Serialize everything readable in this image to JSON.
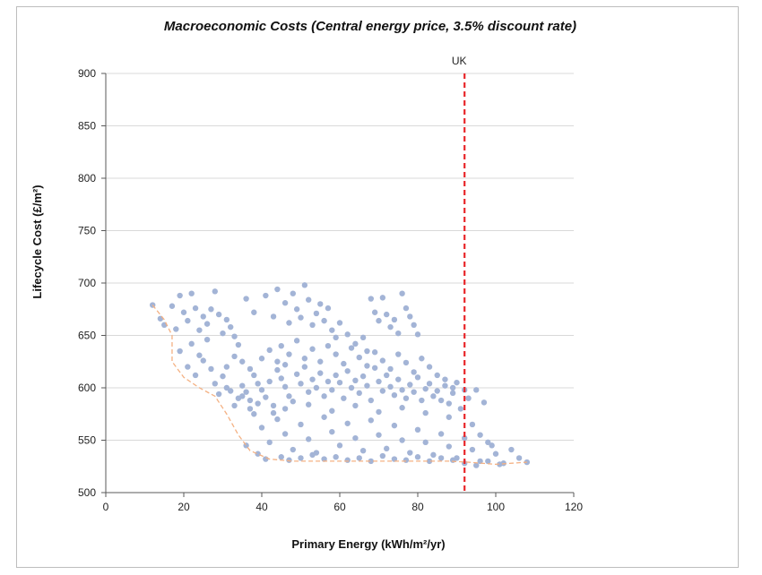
{
  "chart_data": {
    "type": "scatter",
    "title": "Macroeconomic Costs (Central energy price, 3.5% discount rate)",
    "xlabel": "Primary Energy (kWh/m²/yr)",
    "ylabel": "Lifecycle Cost (£/m²)",
    "xlim": [
      0,
      120
    ],
    "ylim": [
      500,
      900
    ],
    "x_ticks": [
      "0",
      "20",
      "40",
      "60",
      "80",
      "100",
      "120"
    ],
    "y_ticks": [
      "500",
      "550",
      "600",
      "650",
      "700",
      "750",
      "800",
      "850",
      "900"
    ],
    "grid": "horizontal",
    "colors": {
      "points": "#a3b4d6",
      "front": "#f4b183",
      "reference": "#e8262a",
      "grid": "#d9d9d9"
    },
    "reference_line": {
      "label": "UK",
      "x": 92
    },
    "pareto_front": [
      [
        12,
        679
      ],
      [
        15,
        665
      ],
      [
        17,
        650
      ],
      [
        17,
        625
      ],
      [
        20,
        610
      ],
      [
        24,
        600
      ],
      [
        28,
        592
      ],
      [
        31,
        575
      ],
      [
        34,
        555
      ],
      [
        37,
        540
      ],
      [
        42,
        532
      ],
      [
        48,
        530
      ],
      [
        60,
        530
      ],
      [
        75,
        530
      ],
      [
        88,
        530
      ],
      [
        93,
        529
      ],
      [
        100,
        527
      ],
      [
        108,
        529
      ]
    ],
    "series": [
      {
        "points": [
          [
            12,
            679
          ],
          [
            14,
            666
          ],
          [
            15,
            660
          ],
          [
            17,
            678
          ],
          [
            18,
            656
          ],
          [
            19,
            688
          ],
          [
            20,
            672
          ],
          [
            21,
            664
          ],
          [
            22,
            690
          ],
          [
            23,
            676
          ],
          [
            24,
            655
          ],
          [
            25,
            668
          ],
          [
            26,
            661
          ],
          [
            27,
            675
          ],
          [
            28,
            692
          ],
          [
            29,
            670
          ],
          [
            30,
            652
          ],
          [
            31,
            665
          ],
          [
            32,
            658
          ],
          [
            33,
            649
          ],
          [
            34,
            641
          ],
          [
            22,
            642
          ],
          [
            24,
            631
          ],
          [
            26,
            646
          ],
          [
            19,
            635
          ],
          [
            21,
            620
          ],
          [
            23,
            612
          ],
          [
            25,
            626
          ],
          [
            27,
            618
          ],
          [
            28,
            604
          ],
          [
            29,
            594
          ],
          [
            30,
            611
          ],
          [
            31,
            600
          ],
          [
            32,
            597
          ],
          [
            33,
            583
          ],
          [
            34,
            590
          ],
          [
            35,
            602
          ],
          [
            36,
            596
          ],
          [
            37,
            588
          ],
          [
            38,
            612
          ],
          [
            39,
            604
          ],
          [
            40,
            598
          ],
          [
            41,
            591
          ],
          [
            42,
            606
          ],
          [
            43,
            583
          ],
          [
            44,
            617
          ],
          [
            45,
            609
          ],
          [
            46,
            601
          ],
          [
            47,
            592
          ],
          [
            48,
            587
          ],
          [
            49,
            613
          ],
          [
            50,
            604
          ],
          [
            51,
            620
          ],
          [
            52,
            596
          ],
          [
            53,
            608
          ],
          [
            54,
            600
          ],
          [
            55,
            614
          ],
          [
            56,
            592
          ],
          [
            57,
            606
          ],
          [
            58,
            598
          ],
          [
            59,
            612
          ],
          [
            60,
            605
          ],
          [
            61,
            590
          ],
          [
            62,
            616
          ],
          [
            63,
            600
          ],
          [
            64,
            607
          ],
          [
            65,
            595
          ],
          [
            66,
            611
          ],
          [
            67,
            602
          ],
          [
            68,
            588
          ],
          [
            69,
            619
          ],
          [
            70,
            606
          ],
          [
            71,
            597
          ],
          [
            72,
            612
          ],
          [
            73,
            601
          ],
          [
            74,
            593
          ],
          [
            75,
            608
          ],
          [
            76,
            598
          ],
          [
            77,
            590
          ],
          [
            78,
            603
          ],
          [
            79,
            596
          ],
          [
            80,
            610
          ],
          [
            81,
            588
          ],
          [
            82,
            599
          ],
          [
            83,
            604
          ],
          [
            84,
            592
          ],
          [
            85,
            597
          ],
          [
            86,
            588
          ],
          [
            87,
            602
          ],
          [
            88,
            585
          ],
          [
            89,
            595
          ],
          [
            90,
            605
          ],
          [
            91,
            580
          ],
          [
            92,
            598
          ],
          [
            93,
            590
          ],
          [
            95,
            598
          ],
          [
            97,
            586
          ],
          [
            36,
            685
          ],
          [
            38,
            672
          ],
          [
            41,
            688
          ],
          [
            43,
            668
          ],
          [
            44,
            694
          ],
          [
            46,
            681
          ],
          [
            47,
            662
          ],
          [
            48,
            690
          ],
          [
            49,
            675
          ],
          [
            50,
            667
          ],
          [
            51,
            698
          ],
          [
            52,
            684
          ],
          [
            53,
            660
          ],
          [
            54,
            671
          ],
          [
            55,
            680
          ],
          [
            56,
            664
          ],
          [
            57,
            676
          ],
          [
            58,
            655
          ],
          [
            59,
            648
          ],
          [
            60,
            662
          ],
          [
            62,
            651
          ],
          [
            64,
            642
          ],
          [
            66,
            648
          ],
          [
            67,
            635
          ],
          [
            68,
            685
          ],
          [
            69,
            672
          ],
          [
            70,
            664
          ],
          [
            71,
            686
          ],
          [
            72,
            670
          ],
          [
            73,
            658
          ],
          [
            74,
            665
          ],
          [
            75,
            652
          ],
          [
            76,
            690
          ],
          [
            77,
            676
          ],
          [
            78,
            668
          ],
          [
            79,
            660
          ],
          [
            80,
            651
          ],
          [
            45,
            640
          ],
          [
            47,
            632
          ],
          [
            49,
            645
          ],
          [
            51,
            628
          ],
          [
            53,
            637
          ],
          [
            55,
            625
          ],
          [
            57,
            640
          ],
          [
            59,
            632
          ],
          [
            61,
            623
          ],
          [
            63,
            638
          ],
          [
            65,
            629
          ],
          [
            67,
            621
          ],
          [
            69,
            634
          ],
          [
            71,
            626
          ],
          [
            73,
            618
          ],
          [
            75,
            632
          ],
          [
            77,
            624
          ],
          [
            79,
            615
          ],
          [
            81,
            628
          ],
          [
            83,
            620
          ],
          [
            85,
            612
          ],
          [
            87,
            608
          ],
          [
            89,
            600
          ],
          [
            38,
            575
          ],
          [
            40,
            562
          ],
          [
            42,
            548
          ],
          [
            44,
            570
          ],
          [
            46,
            556
          ],
          [
            48,
            541
          ],
          [
            50,
            565
          ],
          [
            52,
            551
          ],
          [
            54,
            538
          ],
          [
            56,
            572
          ],
          [
            58,
            558
          ],
          [
            60,
            545
          ],
          [
            62,
            566
          ],
          [
            64,
            552
          ],
          [
            66,
            540
          ],
          [
            68,
            569
          ],
          [
            70,
            555
          ],
          [
            72,
            542
          ],
          [
            74,
            564
          ],
          [
            76,
            550
          ],
          [
            78,
            538
          ],
          [
            80,
            560
          ],
          [
            82,
            548
          ],
          [
            84,
            536
          ],
          [
            86,
            556
          ],
          [
            88,
            544
          ],
          [
            90,
            533
          ],
          [
            92,
            552
          ],
          [
            94,
            541
          ],
          [
            96,
            530
          ],
          [
            98,
            548
          ],
          [
            100,
            537
          ],
          [
            102,
            528
          ],
          [
            104,
            541
          ],
          [
            106,
            533
          ],
          [
            108,
            529
          ],
          [
            36,
            545
          ],
          [
            39,
            537
          ],
          [
            41,
            532
          ],
          [
            45,
            534
          ],
          [
            47,
            531
          ],
          [
            50,
            533
          ],
          [
            53,
            536
          ],
          [
            56,
            532
          ],
          [
            59,
            534
          ],
          [
            62,
            531
          ],
          [
            65,
            533
          ],
          [
            68,
            530
          ],
          [
            71,
            535
          ],
          [
            74,
            532
          ],
          [
            77,
            531
          ],
          [
            80,
            534
          ],
          [
            83,
            530
          ],
          [
            86,
            533
          ],
          [
            89,
            531
          ],
          [
            92,
            528
          ],
          [
            95,
            526
          ],
          [
            98,
            530
          ],
          [
            101,
            527
          ],
          [
            35,
            592
          ],
          [
            37,
            580
          ],
          [
            39,
            585
          ],
          [
            43,
            576
          ],
          [
            46,
            580
          ],
          [
            52,
            584
          ],
          [
            58,
            578
          ],
          [
            64,
            583
          ],
          [
            70,
            577
          ],
          [
            76,
            581
          ],
          [
            82,
            576
          ],
          [
            88,
            572
          ],
          [
            94,
            565
          ],
          [
            96,
            555
          ],
          [
            99,
            545
          ],
          [
            31,
            620
          ],
          [
            33,
            630
          ],
          [
            35,
            625
          ],
          [
            37,
            618
          ],
          [
            40,
            628
          ],
          [
            42,
            636
          ],
          [
            44,
            625
          ],
          [
            46,
            622
          ]
        ]
      }
    ]
  }
}
